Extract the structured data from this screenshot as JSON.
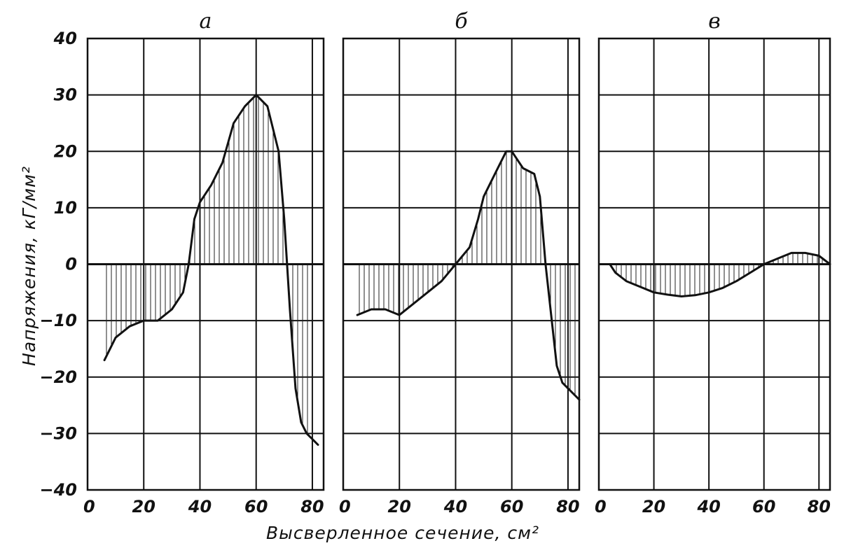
{
  "chart_data": [
    {
      "type": "area",
      "panel_label": "а",
      "x": [
        6,
        10,
        15,
        20,
        25,
        30,
        34,
        36,
        38,
        40,
        44,
        48,
        52,
        56,
        60,
        64,
        68,
        70,
        72,
        74,
        76,
        78,
        80,
        82
      ],
      "values": [
        -17,
        -13,
        -11,
        -10,
        -10,
        -8,
        -5,
        0,
        8,
        11,
        14,
        18,
        25,
        28,
        30,
        28,
        20,
        8,
        -8,
        -22,
        -28,
        -30,
        -31,
        -32
      ],
      "xlim": [
        0,
        84
      ],
      "ylim": [
        -40,
        40
      ]
    },
    {
      "type": "area",
      "panel_label": "б",
      "x": [
        5,
        10,
        15,
        20,
        25,
        30,
        35,
        40,
        45,
        48,
        50,
        54,
        58,
        60,
        64,
        68,
        70,
        72,
        74,
        76,
        78,
        80,
        84
      ],
      "values": [
        -9,
        -8,
        -8,
        -9,
        -7,
        -5,
        -3,
        0,
        3,
        8,
        12,
        16,
        20,
        20,
        17,
        16,
        12,
        0,
        -9,
        -18,
        -21,
        -22,
        -24
      ],
      "xlim": [
        0,
        84
      ],
      "ylim": [
        -40,
        40
      ]
    },
    {
      "type": "area",
      "panel_label": "в",
      "x": [
        4,
        6,
        10,
        15,
        20,
        25,
        30,
        35,
        40,
        45,
        50,
        55,
        60,
        65,
        70,
        75,
        80,
        84
      ],
      "values": [
        0,
        -1.5,
        -3,
        -4,
        -5,
        -5.4,
        -5.7,
        -5.5,
        -5,
        -4.2,
        -3,
        -1.5,
        0,
        1,
        2,
        2,
        1.5,
        0
      ],
      "xlim": [
        0,
        84
      ],
      "ylim": [
        -40,
        40
      ]
    }
  ],
  "axes": {
    "y_ticks": [
      "40",
      "30",
      "20",
      "10",
      "0",
      "-10",
      "-20",
      "-30",
      "-40"
    ],
    "x_ticks": [
      "0",
      "20",
      "40",
      "60",
      "80"
    ],
    "ylabel": "Напряжения, кГ/мм²",
    "xlabel": "Высверленное сечение, см²"
  }
}
